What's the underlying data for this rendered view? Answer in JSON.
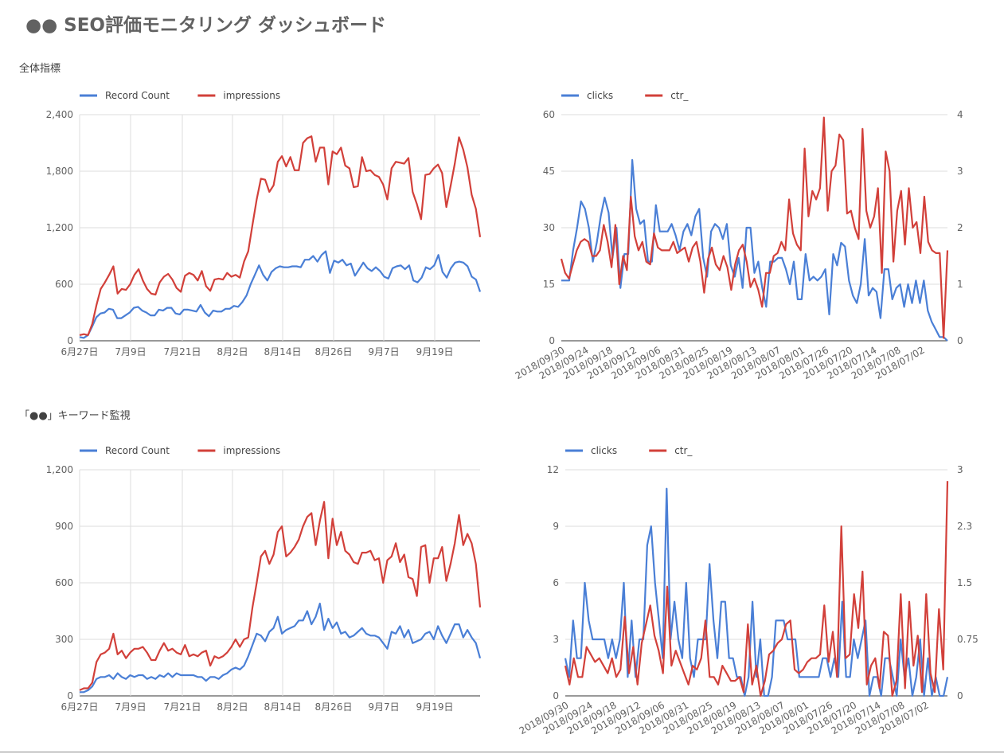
{
  "page": {
    "title": "●● SEO評価モニタリング ダッシュボード",
    "sections": [
      {
        "title": "全体指標"
      },
      {
        "title": "「●●」キーワード監視"
      }
    ]
  },
  "chart_data": [
    {
      "type": "line",
      "id": "overall-time",
      "legend": "top-left",
      "grid": true,
      "x_tick_labels": [
        "6月27日",
        "7月9日",
        "7月21日",
        "8月2日",
        "8月14日",
        "8月26日",
        "9月7日",
        "9月19日"
      ],
      "ylim": [
        0,
        2400
      ],
      "y_ticks": [
        "0",
        "600",
        "1,200",
        "1,800",
        "2,400"
      ],
      "series": [
        {
          "name": "Record Count",
          "color": "#4a7fd6",
          "values": [
            40,
            30,
            60,
            150,
            250,
            290,
            300,
            340,
            330,
            240,
            240,
            270,
            300,
            350,
            360,
            320,
            300,
            270,
            270,
            330,
            320,
            350,
            350,
            290,
            280,
            330,
            330,
            320,
            310,
            380,
            300,
            260,
            320,
            310,
            310,
            340,
            340,
            370,
            360,
            410,
            480,
            600,
            700,
            800,
            700,
            640,
            730,
            770,
            790,
            780,
            780,
            790,
            790,
            780,
            860,
            860,
            900,
            840,
            910,
            950,
            720,
            850,
            830,
            860,
            800,
            820,
            690,
            760,
            830,
            770,
            740,
            780,
            740,
            680,
            660,
            770,
            790,
            800,
            760,
            800,
            640,
            620,
            670,
            780,
            760,
            800,
            910,
            730,
            670,
            770,
            830,
            840,
            830,
            790,
            680,
            650,
            520
          ]
        },
        {
          "name": "impressions",
          "color": "#d2403a",
          "values": [
            60,
            70,
            60,
            180,
            380,
            550,
            620,
            700,
            790,
            500,
            550,
            540,
            600,
            700,
            760,
            640,
            550,
            500,
            490,
            620,
            680,
            710,
            650,
            560,
            520,
            690,
            720,
            700,
            640,
            740,
            580,
            530,
            650,
            660,
            650,
            720,
            680,
            700,
            670,
            840,
            950,
            1230,
            1500,
            1720,
            1710,
            1580,
            1650,
            1900,
            1960,
            1850,
            1950,
            1810,
            1810,
            2100,
            2150,
            2170,
            1900,
            2050,
            2050,
            1660,
            2010,
            1980,
            2050,
            1860,
            1830,
            1630,
            1640,
            1950,
            1800,
            1810,
            1760,
            1740,
            1660,
            1500,
            1830,
            1900,
            1890,
            1880,
            1940,
            1580,
            1450,
            1290,
            1760,
            1770,
            1830,
            1870,
            1780,
            1420,
            1640,
            1880,
            2160,
            2030,
            1840,
            1550,
            1400,
            1100
          ]
        }
      ]
    },
    {
      "type": "line",
      "id": "overall-date",
      "legend": "top-left",
      "grid": true,
      "x_tick_labels": [
        "2018/09/30",
        "2018/09/24",
        "2018/09/18",
        "2018/09/12",
        "2018/09/06",
        "2018/08/31",
        "2018/08/25",
        "2018/08/19",
        "2018/08/13",
        "2018/08/07",
        "2018/08/01",
        "2018/07/26",
        "2018/07/20",
        "2018/07/14",
        "2018/07/08",
        "2018/07/02"
      ],
      "ylim_left": [
        0,
        60
      ],
      "y_ticks_left": [
        "0",
        "15",
        "30",
        "45",
        "60"
      ],
      "ylim_right": [
        0,
        4
      ],
      "y_ticks_right": [
        "0",
        "1",
        "2",
        "3",
        "4"
      ],
      "series": [
        {
          "name": "clicks",
          "axis": "left",
          "color": "#4a7fd6",
          "values": [
            16,
            16,
            16,
            24,
            30,
            37,
            35,
            30,
            21,
            26,
            33,
            38,
            34,
            22,
            30,
            14,
            23,
            23,
            48,
            35,
            31,
            32,
            21,
            21,
            36,
            29,
            29,
            29,
            31,
            28,
            24,
            29,
            31,
            28,
            33,
            35,
            22,
            17,
            29,
            31,
            30,
            27,
            31,
            20,
            17,
            22,
            14,
            30,
            30,
            18,
            21,
            14,
            9,
            21,
            21,
            22,
            22,
            19,
            15,
            21,
            11,
            11,
            23,
            16,
            17,
            16,
            17,
            19,
            7,
            23,
            20,
            26,
            25,
            16,
            12,
            10,
            15,
            27,
            12,
            14,
            13,
            6,
            19,
            19,
            11,
            14,
            15,
            9,
            15,
            10,
            16,
            10,
            16,
            8,
            5,
            3,
            1,
            1,
            0
          ]
        },
        {
          "name": "ctr_",
          "axis": "right",
          "color": "#d2403a",
          "values": [
            1.45,
            1.2,
            1.1,
            1.35,
            1.6,
            1.75,
            1.8,
            1.75,
            1.5,
            1.5,
            1.6,
            2.05,
            1.75,
            1.3,
            2.05,
            1,
            1.5,
            1.25,
            2.55,
            1.85,
            1.6,
            1.75,
            1.4,
            1.35,
            1.9,
            1.65,
            1.6,
            1.6,
            1.6,
            1.75,
            1.55,
            1.6,
            1.65,
            1.4,
            1.65,
            1.75,
            1.4,
            0.85,
            1.45,
            1.65,
            1.35,
            1.25,
            1.5,
            1.3,
            0.9,
            1.35,
            1.6,
            1.7,
            1.4,
            0.95,
            1.1,
            0.9,
            0.6,
            1.2,
            1.2,
            1.5,
            1.55,
            1.75,
            1.6,
            2.5,
            1.9,
            1.7,
            1.6,
            3.4,
            2.2,
            2.65,
            2.5,
            2.7,
            3.95,
            2.3,
            3.0,
            3.1,
            3.65,
            3.55,
            2.25,
            2.3,
            2,
            1.8,
            3.75,
            2.3,
            2,
            2.2,
            2.7,
            1.2,
            3.35,
            3,
            1.4,
            2.3,
            2.65,
            1.7,
            2.7,
            2,
            2.1,
            1.55,
            2.55,
            1.75,
            1.6,
            1.55,
            1.55,
            0.05,
            1.6
          ]
        }
      ]
    },
    {
      "type": "line",
      "id": "keyword-time",
      "legend": "top-left",
      "grid": true,
      "x_tick_labels": [
        "6月27日",
        "7月9日",
        "7月21日",
        "8月2日",
        "8月14日",
        "8月26日",
        "9月7日",
        "9月19日"
      ],
      "ylim": [
        0,
        1200
      ],
      "y_ticks": [
        "0",
        "300",
        "600",
        "900",
        "1,200"
      ],
      "series": [
        {
          "name": "Record Count",
          "color": "#4a7fd6",
          "values": [
            20,
            20,
            30,
            50,
            90,
            100,
            100,
            110,
            90,
            120,
            100,
            90,
            110,
            100,
            110,
            110,
            90,
            100,
            90,
            110,
            100,
            120,
            100,
            120,
            110,
            110,
            110,
            110,
            100,
            100,
            80,
            100,
            100,
            90,
            110,
            120,
            140,
            150,
            140,
            160,
            210,
            270,
            330,
            320,
            290,
            340,
            360,
            420,
            330,
            350,
            360,
            370,
            400,
            400,
            450,
            380,
            420,
            490,
            350,
            410,
            360,
            390,
            330,
            340,
            310,
            320,
            340,
            360,
            330,
            320,
            320,
            310,
            280,
            250,
            340,
            330,
            370,
            310,
            350,
            280,
            290,
            300,
            330,
            340,
            300,
            370,
            320,
            280,
            330,
            380,
            380,
            310,
            350,
            310,
            280,
            200
          ]
        },
        {
          "name": "impressions",
          "color": "#d2403a",
          "values": [
            30,
            40,
            40,
            70,
            180,
            220,
            230,
            250,
            330,
            220,
            240,
            200,
            230,
            250,
            250,
            260,
            230,
            190,
            190,
            240,
            280,
            240,
            250,
            230,
            220,
            270,
            210,
            220,
            210,
            230,
            240,
            160,
            210,
            200,
            210,
            230,
            260,
            300,
            260,
            300,
            310,
            470,
            600,
            740,
            770,
            700,
            750,
            870,
            900,
            740,
            760,
            790,
            830,
            900,
            950,
            970,
            800,
            930,
            1030,
            730,
            940,
            800,
            870,
            770,
            750,
            710,
            700,
            760,
            760,
            770,
            720,
            730,
            600,
            720,
            740,
            810,
            710,
            750,
            630,
            620,
            530,
            790,
            800,
            600,
            730,
            730,
            790,
            610,
            700,
            810,
            960,
            800,
            860,
            810,
            700,
            470
          ]
        }
      ]
    },
    {
      "type": "line",
      "id": "keyword-date",
      "legend": "top-left",
      "grid": true,
      "x_tick_labels": [
        "2018/09/30",
        "2018/09/24",
        "2018/09/18",
        "2018/09/12",
        "2018/09/06",
        "2018/08/31",
        "2018/08/25",
        "2018/08/19",
        "2018/08/13",
        "2018/08/07",
        "2018/08/01",
        "2018/07/26",
        "2018/07/20",
        "2018/07/14",
        "2018/07/08",
        "2018/07/02"
      ],
      "ylim_left": [
        0,
        12
      ],
      "y_ticks_left": [
        "0",
        "3",
        "6",
        "9",
        "12"
      ],
      "ylim_right": [
        0,
        3
      ],
      "y_ticks_right": [
        "0",
        "0.75",
        "1.5",
        "2.3",
        "3"
      ],
      "series": [
        {
          "name": "clicks",
          "axis": "left",
          "color": "#4a7fd6",
          "values": [
            2,
            1,
            4,
            2,
            2,
            6,
            4,
            3,
            3,
            3,
            3,
            2,
            3,
            2,
            3,
            6,
            1,
            4,
            1,
            3,
            3,
            8,
            9,
            6,
            4,
            2,
            11,
            3,
            5,
            3,
            2,
            6,
            2,
            1,
            3,
            3,
            3,
            7,
            4,
            2,
            5,
            5,
            2,
            2,
            1,
            1,
            0,
            1,
            5,
            1,
            3,
            0,
            0,
            1,
            4,
            4,
            4,
            3,
            3,
            3,
            1,
            1,
            1,
            1,
            1,
            1,
            2,
            2,
            1,
            2,
            1,
            5,
            1,
            1,
            3,
            2,
            3,
            4,
            0,
            1,
            1,
            0,
            2,
            2,
            1,
            0,
            3,
            1,
            2,
            0,
            1,
            3,
            0,
            2,
            0,
            1,
            0,
            0,
            1
          ]
        },
        {
          "name": "ctr_",
          "axis": "right",
          "color": "#d2403a",
          "values": [
            0.4,
            0.15,
            0.5,
            0.25,
            0.25,
            0.65,
            0.55,
            0.45,
            0.5,
            0.4,
            0.3,
            0.5,
            0.25,
            0.35,
            1.05,
            0.3,
            0.65,
            0.15,
            0.7,
            0.95,
            1.2,
            0.8,
            0.6,
            0.3,
            1.45,
            0.4,
            0.6,
            0.45,
            0.3,
            0.15,
            0.4,
            0.35,
            0.5,
            1,
            0.25,
            0.25,
            0.15,
            0.4,
            0.3,
            0.2,
            0.2,
            0.25,
            0.05,
            0.95,
            0.15,
            0.4,
            0,
            0.2,
            0.55,
            0.6,
            0.7,
            0.75,
            0.95,
            1,
            0.35,
            0.3,
            0.35,
            0.45,
            0.5,
            0.5,
            0.55,
            1.2,
            0.45,
            0.85,
            0.25,
            2.25,
            0.5,
            0.55,
            1.35,
            0.9,
            1.65,
            0.15,
            0.4,
            0.5,
            0.1,
            0.85,
            0.8,
            0,
            0.2,
            1.35,
            0.1,
            1.25,
            0.4,
            0.8,
            0.05,
            1.35,
            0.3,
            0.05,
            1.15,
            0.35,
            2.85
          ]
        }
      ]
    }
  ]
}
